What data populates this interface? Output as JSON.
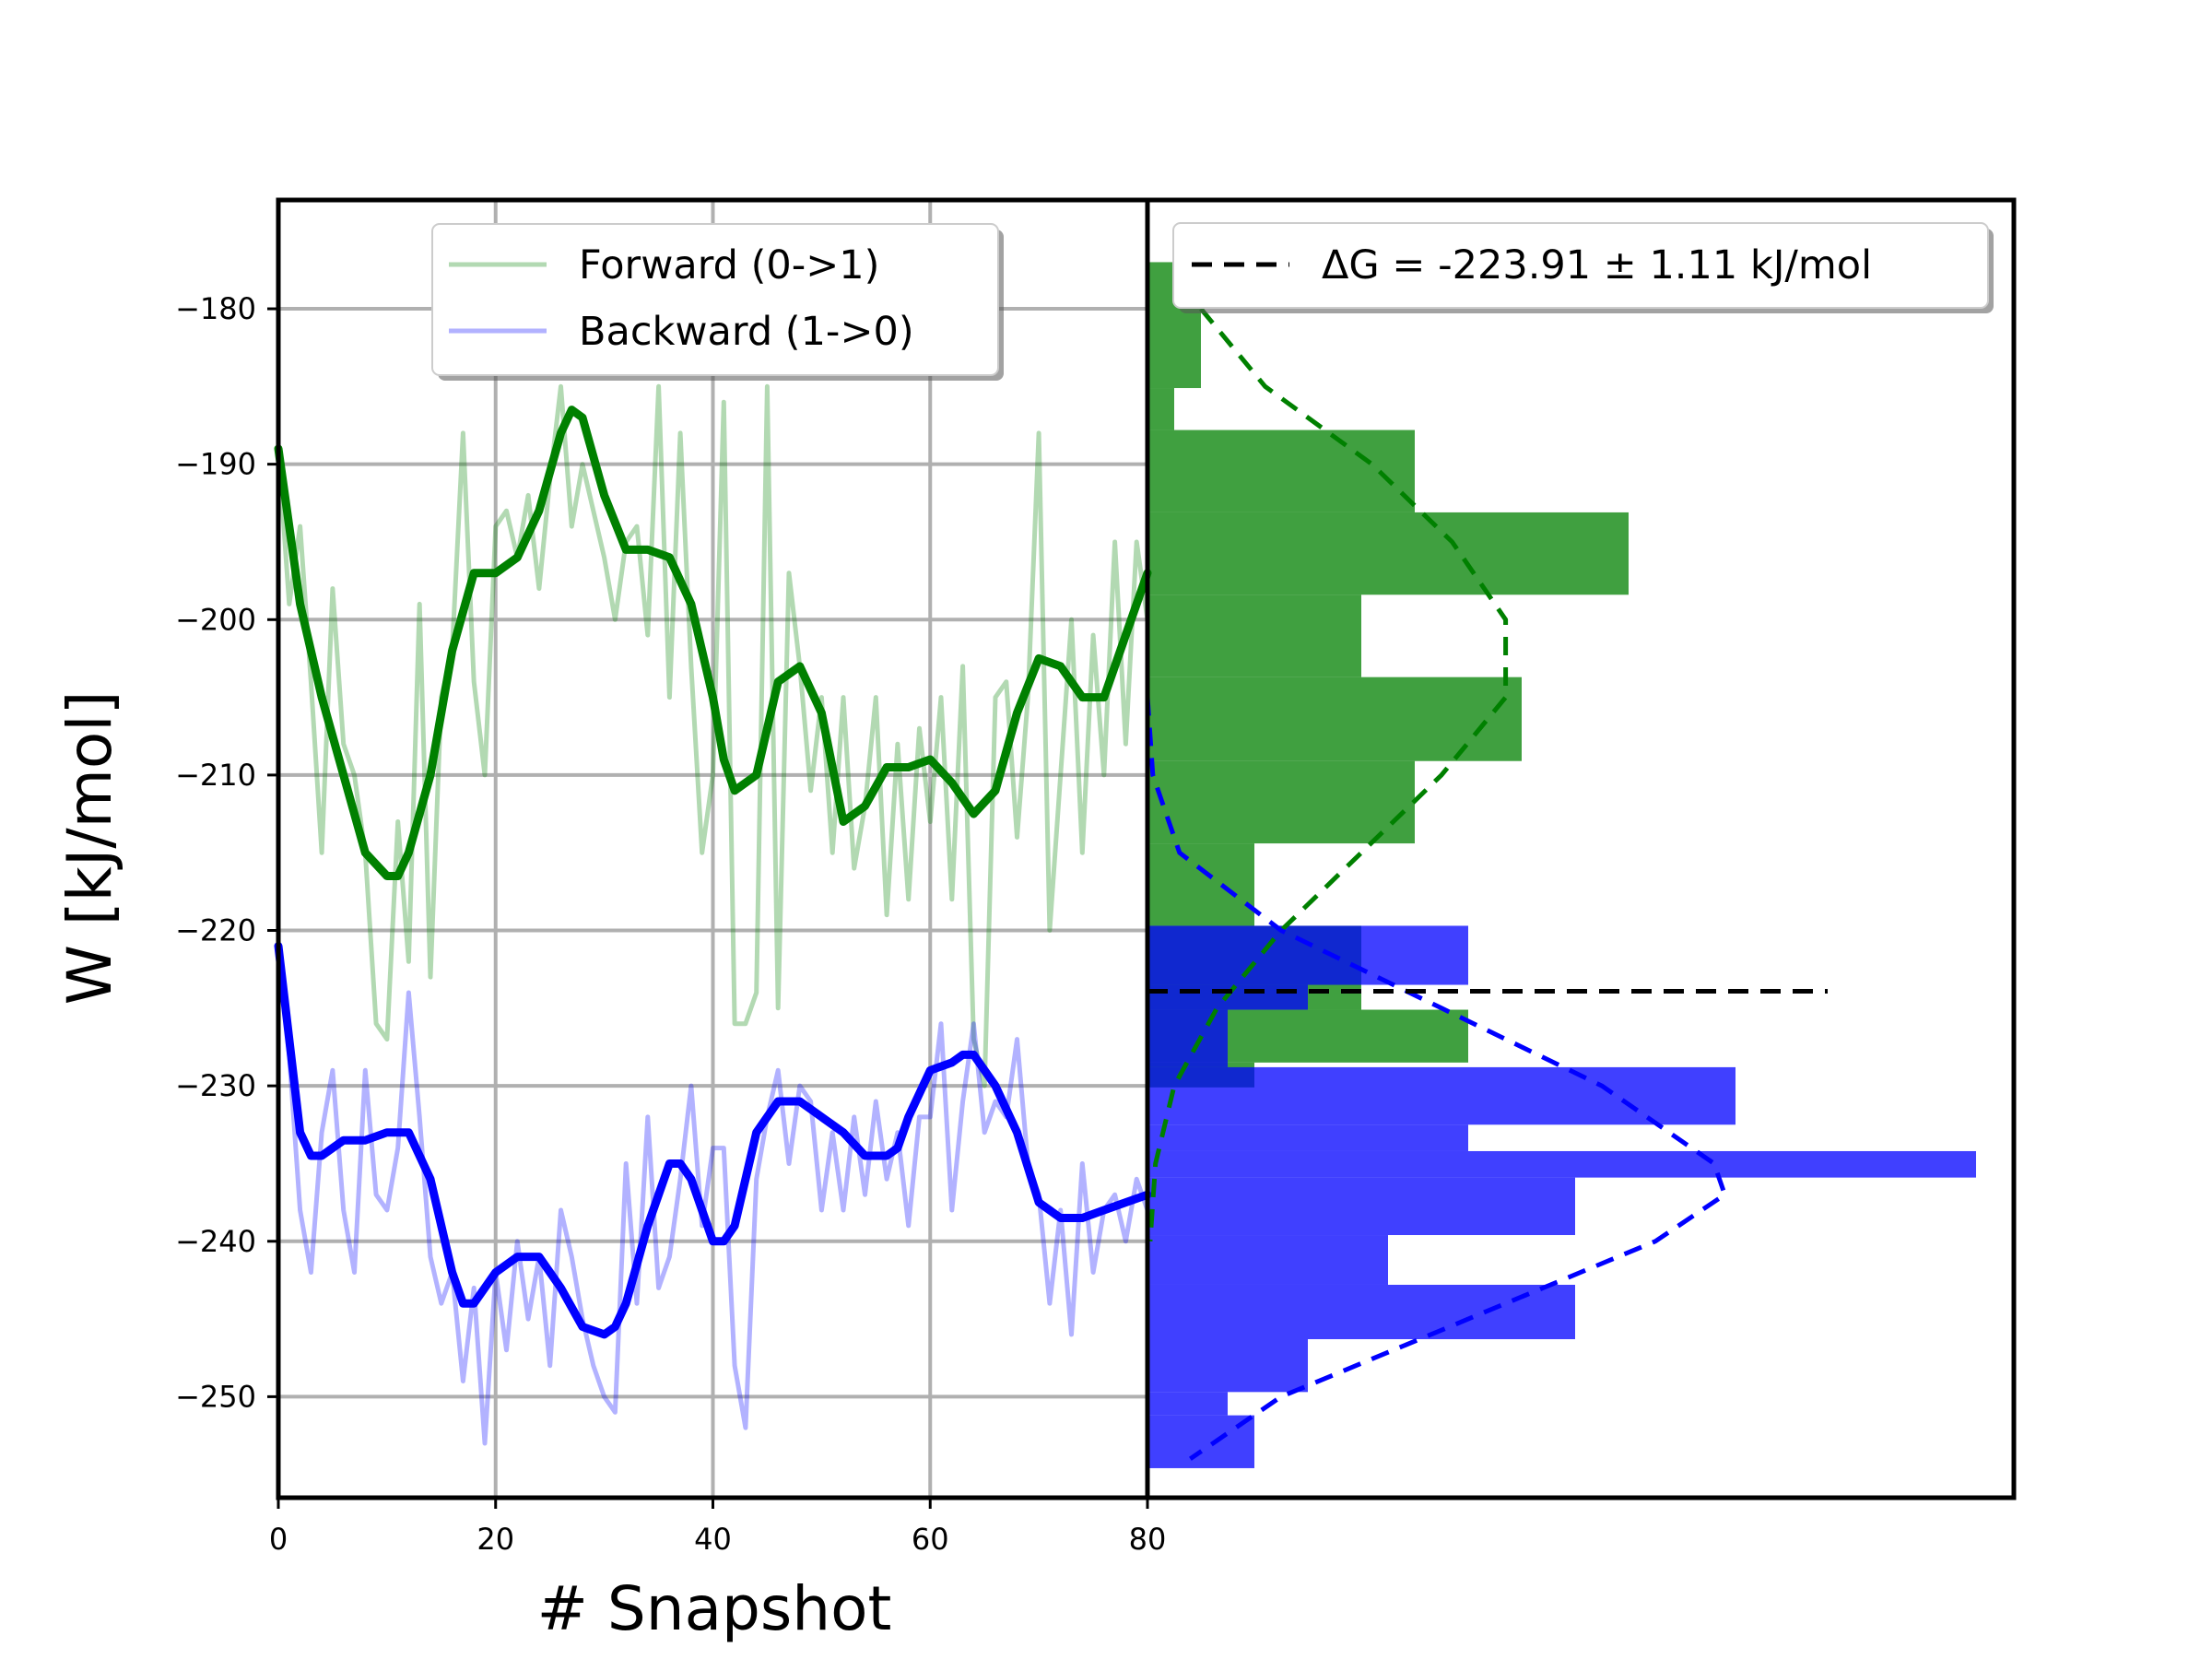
{
  "chart_data": [
    {
      "type": "line",
      "xlabel": "# Snapshot",
      "ylabel": "W [kJ/mol]",
      "xlim": [
        0,
        80
      ],
      "ylim": [
        -256.5,
        -173
      ],
      "xticks": [
        0,
        20,
        40,
        60,
        80
      ],
      "yticks": [
        -180,
        -190,
        -200,
        -210,
        -220,
        -230,
        -240,
        -250
      ],
      "grid": true,
      "legend_position": "top-center",
      "series": [
        {
          "name": "Forward (0->1)",
          "color": "#008000",
          "style": "raw",
          "x": [
            0,
            1,
            2,
            3,
            4,
            5,
            6,
            7,
            8,
            9,
            10,
            11,
            12,
            13,
            14,
            15,
            16,
            17,
            18,
            19,
            20,
            21,
            22,
            23,
            24,
            25,
            26,
            27,
            28,
            29,
            30,
            31,
            32,
            33,
            34,
            35,
            36,
            37,
            38,
            39,
            40,
            41,
            42,
            43,
            44,
            45,
            46,
            47,
            48,
            49,
            50,
            51,
            52,
            53,
            54,
            55,
            56,
            57,
            58,
            59,
            60,
            61,
            62,
            63,
            64,
            65,
            66,
            67,
            68,
            69,
            70,
            71,
            72,
            73,
            74,
            75,
            76,
            77,
            78,
            79,
            80
          ],
          "y": [
            -189,
            -199,
            -194,
            -204,
            -215,
            -198,
            -208,
            -210,
            -215,
            -226,
            -227,
            -213,
            -222,
            -199,
            -223,
            -205,
            -202,
            -188,
            -204,
            -210,
            -194,
            -193,
            -196,
            -192,
            -198,
            -191,
            -185,
            -194,
            -190,
            -193,
            -196,
            -200,
            -195,
            -194,
            -201,
            -185,
            -205,
            -188,
            -203,
            -215,
            -210,
            -186,
            -226,
            -226,
            -224,
            -185,
            -225,
            -197,
            -203,
            -211,
            -205,
            -215,
            -205,
            -216,
            -212,
            -205,
            -219,
            -208,
            -218,
            -207,
            -213,
            -205,
            -218,
            -203,
            -227,
            -230,
            -205,
            -204,
            -214,
            -205,
            -188,
            -220,
            -210,
            -200,
            -215,
            -201,
            -210,
            -195,
            -208,
            -195,
            -200
          ]
        },
        {
          "name": "Forward (0->1) smoothed",
          "color": "#008000",
          "style": "smooth",
          "x": [
            0,
            2,
            4,
            6,
            8,
            10,
            11,
            12,
            14,
            16,
            18,
            20,
            22,
            24,
            26,
            27,
            28,
            30,
            32,
            34,
            36,
            38,
            40,
            41,
            42,
            44,
            46,
            48,
            50,
            52,
            54,
            56,
            58,
            60,
            62,
            64,
            66,
            68,
            70,
            72,
            74,
            76,
            78,
            80
          ],
          "y": [
            -189,
            -199,
            -205,
            -210,
            -215,
            -216.5,
            -216.5,
            -215,
            -210,
            -202,
            -197,
            -197,
            -196,
            -193,
            -188,
            -186.5,
            -187,
            -192,
            -195.5,
            -195.5,
            -196,
            -199,
            -205,
            -209,
            -211,
            -210,
            -204,
            -203,
            -206,
            -213,
            -212,
            -209.5,
            -209.5,
            -209,
            -210.5,
            -212.5,
            -211,
            -206,
            -202.5,
            -203,
            -205,
            -205,
            -201,
            -197
          ]
        },
        {
          "name": "Backward (1->0)",
          "color": "#0000ff",
          "style": "raw",
          "x": [
            0,
            1,
            2,
            3,
            4,
            5,
            6,
            7,
            8,
            9,
            10,
            11,
            12,
            13,
            14,
            15,
            16,
            17,
            18,
            19,
            20,
            21,
            22,
            23,
            24,
            25,
            26,
            27,
            28,
            29,
            30,
            31,
            32,
            33,
            34,
            35,
            36,
            37,
            38,
            39,
            40,
            41,
            42,
            43,
            44,
            45,
            46,
            47,
            48,
            49,
            50,
            51,
            52,
            53,
            54,
            55,
            56,
            57,
            58,
            59,
            60,
            61,
            62,
            63,
            64,
            65,
            66,
            67,
            68,
            69,
            70,
            71,
            72,
            73,
            74,
            75,
            76,
            77,
            78,
            79,
            80
          ],
          "y": [
            -221,
            -228,
            -238,
            -242,
            -233,
            -229,
            -238,
            -242,
            -229,
            -237,
            -238,
            -234,
            -224,
            -232,
            -241,
            -244,
            -242,
            -249,
            -243,
            -253,
            -242,
            -247,
            -240,
            -245,
            -241,
            -248,
            -238,
            -241,
            -245,
            -248,
            -250,
            -251,
            -235,
            -244,
            -232,
            -243,
            -241,
            -236,
            -230,
            -239,
            -234,
            -234,
            -248,
            -252,
            -236,
            -232,
            -229,
            -235,
            -230,
            -231,
            -238,
            -233,
            -238,
            -232,
            -237,
            -231,
            -236,
            -233,
            -239,
            -232,
            -232,
            -226,
            -238,
            -231,
            -226,
            -233,
            -231,
            -232,
            -227,
            -235,
            -237,
            -244,
            -238,
            -246,
            -235,
            -242,
            -238,
            -237,
            -240,
            -236,
            -238
          ]
        },
        {
          "name": "Backward (1->0) smoothed",
          "color": "#0000ff",
          "style": "smooth",
          "x": [
            0,
            2,
            3,
            4,
            5,
            6,
            8,
            10,
            12,
            14,
            16,
            17,
            18,
            20,
            22,
            24,
            26,
            28,
            30,
            31,
            32,
            34,
            36,
            37,
            38,
            40,
            41,
            42,
            44,
            46,
            48,
            50,
            52,
            54,
            56,
            57,
            58,
            60,
            62,
            63,
            64,
            66,
            68,
            70,
            72,
            74,
            76,
            78,
            80
          ],
          "y": [
            -221,
            -233,
            -234.5,
            -234.5,
            -234,
            -233.5,
            -233.5,
            -233,
            -233,
            -236,
            -242,
            -244,
            -244,
            -242,
            -241,
            -241,
            -243,
            -245.5,
            -246,
            -245.5,
            -244,
            -239,
            -235,
            -235,
            -236,
            -240,
            -240,
            -239,
            -233,
            -231,
            -231,
            -232,
            -233,
            -234.5,
            -234.5,
            -234,
            -232,
            -229,
            -228.5,
            -228,
            -228,
            -230,
            -233,
            -237.5,
            -238.5,
            -238.5,
            -238,
            -237.5,
            -237
          ]
        }
      ]
    },
    {
      "type": "histogram",
      "orientation": "horizontal",
      "ylim": [
        -256.5,
        -173
      ],
      "legend_position": "top",
      "legend_label": "ΔG = -223.91 ± 1.11 kJ/mol",
      "reference_line": {
        "y": -223.91,
        "color": "#000000",
        "style": "dashed"
      },
      "series": [
        {
          "name": "Forward (0->1)",
          "color": "#008000",
          "bins": [
            {
              "y0": -177,
              "y1": -185.1,
              "count": 1
            },
            {
              "y0": -185.1,
              "y1": -187.8,
              "count": 0.5
            },
            {
              "y0": -187.8,
              "y1": -193.1,
              "count": 5
            },
            {
              "y0": -193.1,
              "y1": -198.4,
              "count": 9
            },
            {
              "y0": -198.4,
              "y1": -203.7,
              "count": 4
            },
            {
              "y0": -203.7,
              "y1": -209.1,
              "count": 7
            },
            {
              "y0": -209.1,
              "y1": -214.4,
              "count": 5
            },
            {
              "y0": -214.4,
              "y1": -219.7,
              "count": 2
            },
            {
              "y0": -219.7,
              "y1": -225.1,
              "count": 4
            },
            {
              "y0": -225.1,
              "y1": -228.5,
              "count": 6
            },
            {
              "y0": -228.5,
              "y1": -230.1,
              "count": 2
            }
          ],
          "fit": {
            "style": "dashed",
            "y": [
              -180,
              -185,
              -190,
              -195,
              -200,
              -205,
              -210,
              -215,
              -220,
              -225,
              -230,
              -235,
              -240
            ],
            "value": [
              1,
              2.2,
              4.2,
              5.7,
              6.7,
              6.7,
              5.5,
              4,
              2.5,
              1.3,
              0.5,
              0.15,
              0.05
            ]
          }
        },
        {
          "name": "Backward (1->0)",
          "color": "#0000ff",
          "bins": [
            {
              "y0": -219.7,
              "y1": -223.5,
              "count": 6
            },
            {
              "y0": -223.5,
              "y1": -225.1,
              "count": 3
            },
            {
              "y0": -225.1,
              "y1": -228.8,
              "count": 1.5
            },
            {
              "y0": -228.8,
              "y1": -232.5,
              "count": 11
            },
            {
              "y0": -232.5,
              "y1": -234.2,
              "count": 6
            },
            {
              "y0": -234.2,
              "y1": -235.9,
              "count": 15.5
            },
            {
              "y0": -235.9,
              "y1": -239.6,
              "count": 8
            },
            {
              "y0": -239.6,
              "y1": -242.8,
              "count": 4.5
            },
            {
              "y0": -242.8,
              "y1": -246.3,
              "count": 8
            },
            {
              "y0": -246.3,
              "y1": -249.7,
              "count": 3
            },
            {
              "y0": -249.7,
              "y1": -251.2,
              "count": 1.5
            },
            {
              "y0": -251.2,
              "y1": -254.6,
              "count": 2
            }
          ],
          "fit": {
            "style": "dashed",
            "y": [
              -205,
              -210,
              -215,
              -220,
              -225,
              -230,
              -235,
              -237,
              -240,
              -245,
              -250,
              -254
            ],
            "value": [
              0,
              0.1,
              0.6,
              2.5,
              5.5,
              8.5,
              10.6,
              10.8,
              9.5,
              6,
              2.5,
              0.8
            ]
          }
        }
      ]
    }
  ]
}
